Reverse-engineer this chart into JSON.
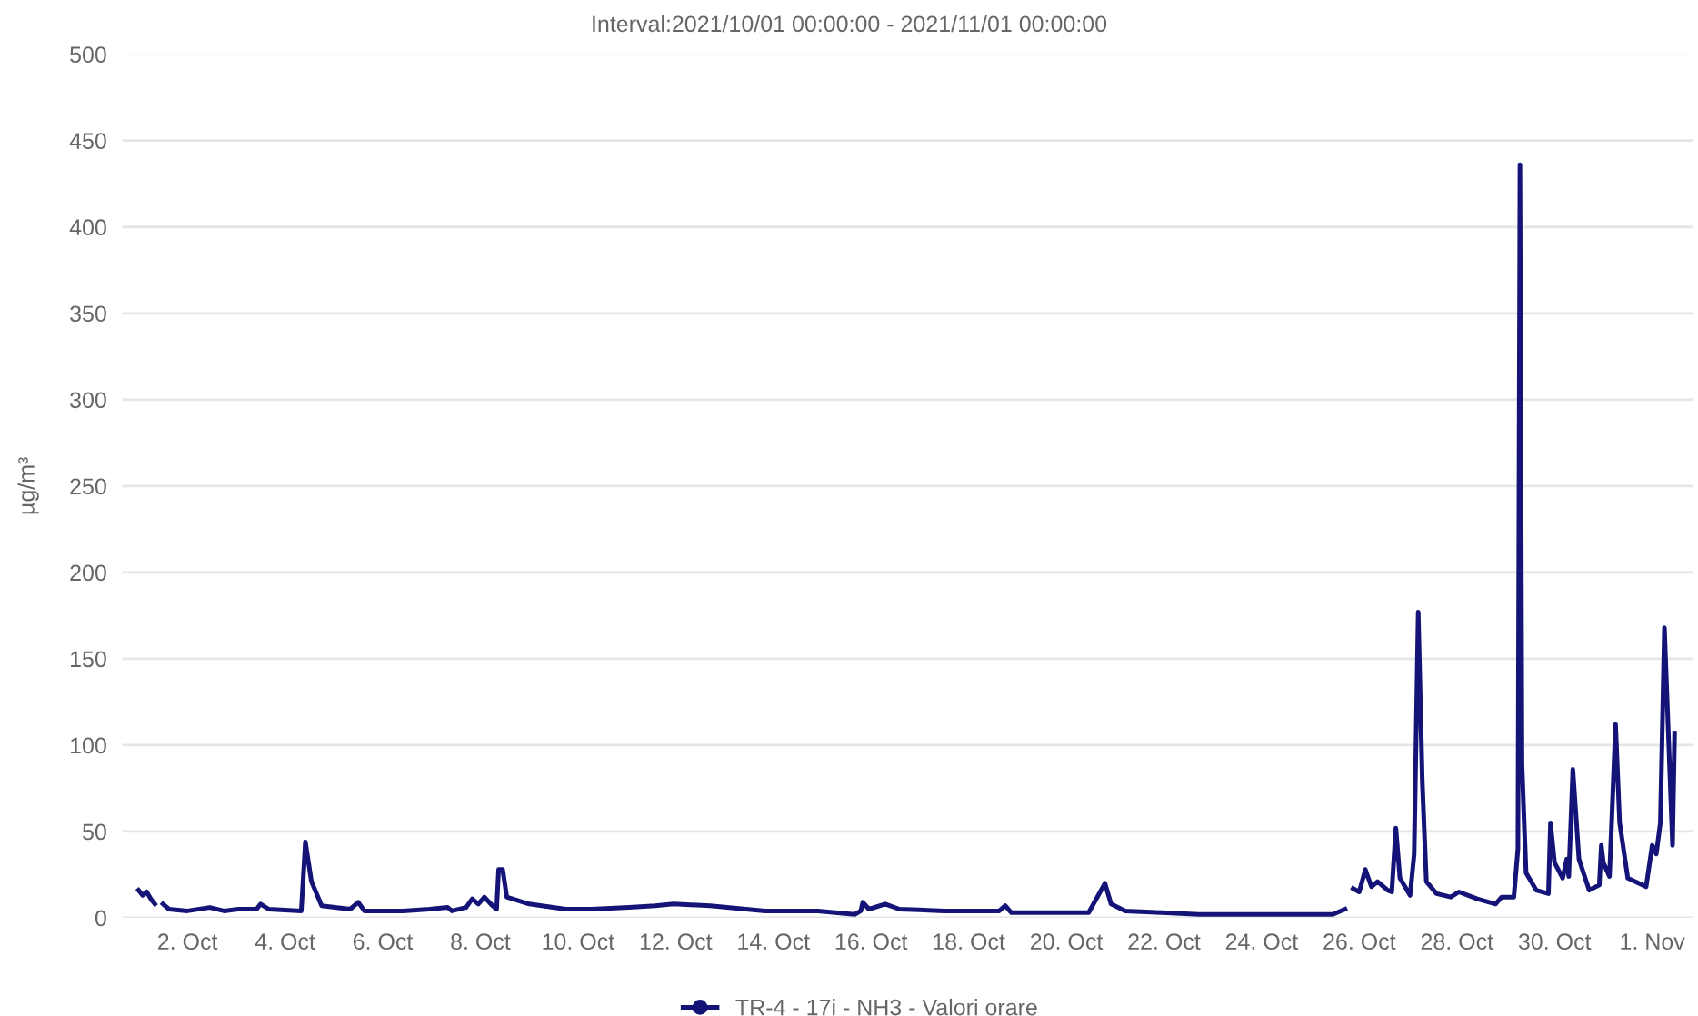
{
  "chart_data": {
    "type": "line",
    "title": "Interval:2021/10/01 00:00:00 - 2021/11/01 00:00:00",
    "ylabel": "µg/m³",
    "x": [
      "2021-10-01T00:00",
      "2021-10-01T02:00",
      "2021-10-01T04:00",
      "2021-10-01T06:00",
      "2021-10-01T08:00",
      "2021-10-01T10:00",
      "2021-10-01T12:00",
      "2021-10-01T15:00",
      "2021-10-02T00:00",
      "2021-10-02T11:00",
      "2021-10-02T18:00",
      "2021-10-03T01:00",
      "2021-10-03T10:00",
      "2021-10-03T12:00",
      "2021-10-03T16:00",
      "2021-10-04T08:00",
      "2021-10-04T10:00",
      "2021-10-04T13:00",
      "2021-10-04T18:00",
      "2021-10-05T08:00",
      "2021-10-05T12:00",
      "2021-10-05T15:00",
      "2021-10-06T10:00",
      "2021-10-06T23:00",
      "2021-10-07T08:00",
      "2021-10-07T10:00",
      "2021-10-07T17:00",
      "2021-10-07T20:00",
      "2021-10-07T23:00",
      "2021-10-08T02:00",
      "2021-10-08T06:00",
      "2021-10-08T08:00",
      "2021-10-08T09:00",
      "2021-10-08T11:00",
      "2021-10-08T13:00",
      "2021-10-09T00:00",
      "2021-10-09T18:00",
      "2021-10-10T07:00",
      "2021-10-11T01:00",
      "2021-10-11T14:00",
      "2021-10-11T23:00",
      "2021-10-12T17:00",
      "2021-10-13T20:00",
      "2021-10-14T22:00",
      "2021-10-15T16:00",
      "2021-10-15T19:00",
      "2021-10-15T20:00",
      "2021-10-15T23:00",
      "2021-10-16T07:00",
      "2021-10-16T14:00",
      "2021-10-17T12:00",
      "2021-10-18T15:00",
      "2021-10-18T18:00",
      "2021-10-18T21:00",
      "2021-10-20T11:00",
      "2021-10-20T19:00",
      "2021-10-20T22:00",
      "2021-10-21T05:00",
      "2021-10-21T23:00",
      "2021-10-22T17:00",
      "2021-10-24T04:00",
      "2021-10-25T11:00",
      "2021-10-25T17:00",
      "2021-10-25T19:00",
      "2021-10-25T21:00",
      "2021-10-26T00:00",
      "2021-10-26T03:00",
      "2021-10-26T06:00",
      "2021-10-26T09:00",
      "2021-10-26T14:00",
      "2021-10-26T16:00",
      "2021-10-26T18:00",
      "2021-10-26T20:00",
      "2021-10-27T01:00",
      "2021-10-27T03:00",
      "2021-10-27T05:00",
      "2021-10-27T07:00",
      "2021-10-27T09:00",
      "2021-10-27T14:00",
      "2021-10-27T21:00",
      "2021-10-28T01:00",
      "2021-10-28T10:00",
      "2021-10-28T19:00",
      "2021-10-28T22:00",
      "2021-10-29T04:00",
      "2021-10-29T06:00",
      "2021-10-29T07:00",
      "2021-10-29T08:00",
      "2021-10-29T10:00",
      "2021-10-29T15:00",
      "2021-10-29T21:00",
      "2021-10-29T22:00",
      "2021-10-30T00:00",
      "2021-10-30T04:00",
      "2021-10-30T06:00",
      "2021-10-30T07:00",
      "2021-10-30T09:00",
      "2021-10-30T12:00",
      "2021-10-30T17:00",
      "2021-10-30T22:00",
      "2021-10-30T23:00",
      "2021-10-31T00:00",
      "2021-10-31T03:00",
      "2021-10-31T06:00",
      "2021-10-31T08:00",
      "2021-10-31T12:00",
      "2021-10-31T21:00",
      "2021-11-01T00:00",
      "2021-11-01T02:00",
      "2021-11-01T04:00",
      "2021-11-01T06:00",
      "2021-11-01T10:00",
      "2021-11-01T11:00"
    ],
    "series": [
      {
        "name": "TR-4 - 17i - NH3 - Valori orare",
        "color": "#141478",
        "values": [
          16,
          13,
          15,
          11,
          8,
          null,
          8,
          5,
          4,
          6,
          4,
          5,
          5,
          8,
          5,
          4,
          44,
          21,
          7,
          5,
          9,
          4,
          4,
          5,
          6,
          4,
          6,
          11,
          8,
          12,
          7,
          5,
          28,
          28,
          12,
          8,
          5,
          5,
          6,
          7,
          8,
          7,
          4,
          4,
          2,
          4,
          9,
          5,
          8,
          5,
          4,
          4,
          7,
          3,
          3,
          20,
          8,
          4,
          3,
          2,
          2,
          2,
          5,
          null,
          17,
          15,
          28,
          18,
          21,
          16,
          15,
          52,
          23,
          13,
          37,
          177,
          79,
          21,
          14,
          12,
          15,
          11,
          8,
          12,
          12,
          40,
          436,
          89,
          26,
          16,
          14,
          55,
          32,
          23,
          34,
          24,
          86,
          34,
          16,
          19,
          42,
          32,
          24,
          112,
          55,
          23,
          18,
          42,
          37,
          55,
          168,
          42,
          107
        ]
      }
    ],
    "xlim": [
      "2021-09-30T16:00",
      "2021-11-01T20:00"
    ],
    "xticks": [
      {
        "value": "2021-10-02",
        "label": "2. Oct"
      },
      {
        "value": "2021-10-04",
        "label": "4. Oct"
      },
      {
        "value": "2021-10-06",
        "label": "6. Oct"
      },
      {
        "value": "2021-10-08",
        "label": "8. Oct"
      },
      {
        "value": "2021-10-10",
        "label": "10. Oct"
      },
      {
        "value": "2021-10-12",
        "label": "12. Oct"
      },
      {
        "value": "2021-10-14",
        "label": "14. Oct"
      },
      {
        "value": "2021-10-16",
        "label": "16. Oct"
      },
      {
        "value": "2021-10-18",
        "label": "18. Oct"
      },
      {
        "value": "2021-10-20",
        "label": "20. Oct"
      },
      {
        "value": "2021-10-22",
        "label": "22. Oct"
      },
      {
        "value": "2021-10-24",
        "label": "24. Oct"
      },
      {
        "value": "2021-10-26",
        "label": "26. Oct"
      },
      {
        "value": "2021-10-28",
        "label": "28. Oct"
      },
      {
        "value": "2021-10-30",
        "label": "30. Oct"
      },
      {
        "value": "2021-11-01",
        "label": "1. Nov"
      }
    ],
    "ylim": [
      0,
      500
    ],
    "yticks": [
      0,
      50,
      100,
      150,
      200,
      250,
      300,
      350,
      400,
      450,
      500
    ],
    "grid": "y",
    "legend": "bottom",
    "line_style": "solid"
  }
}
